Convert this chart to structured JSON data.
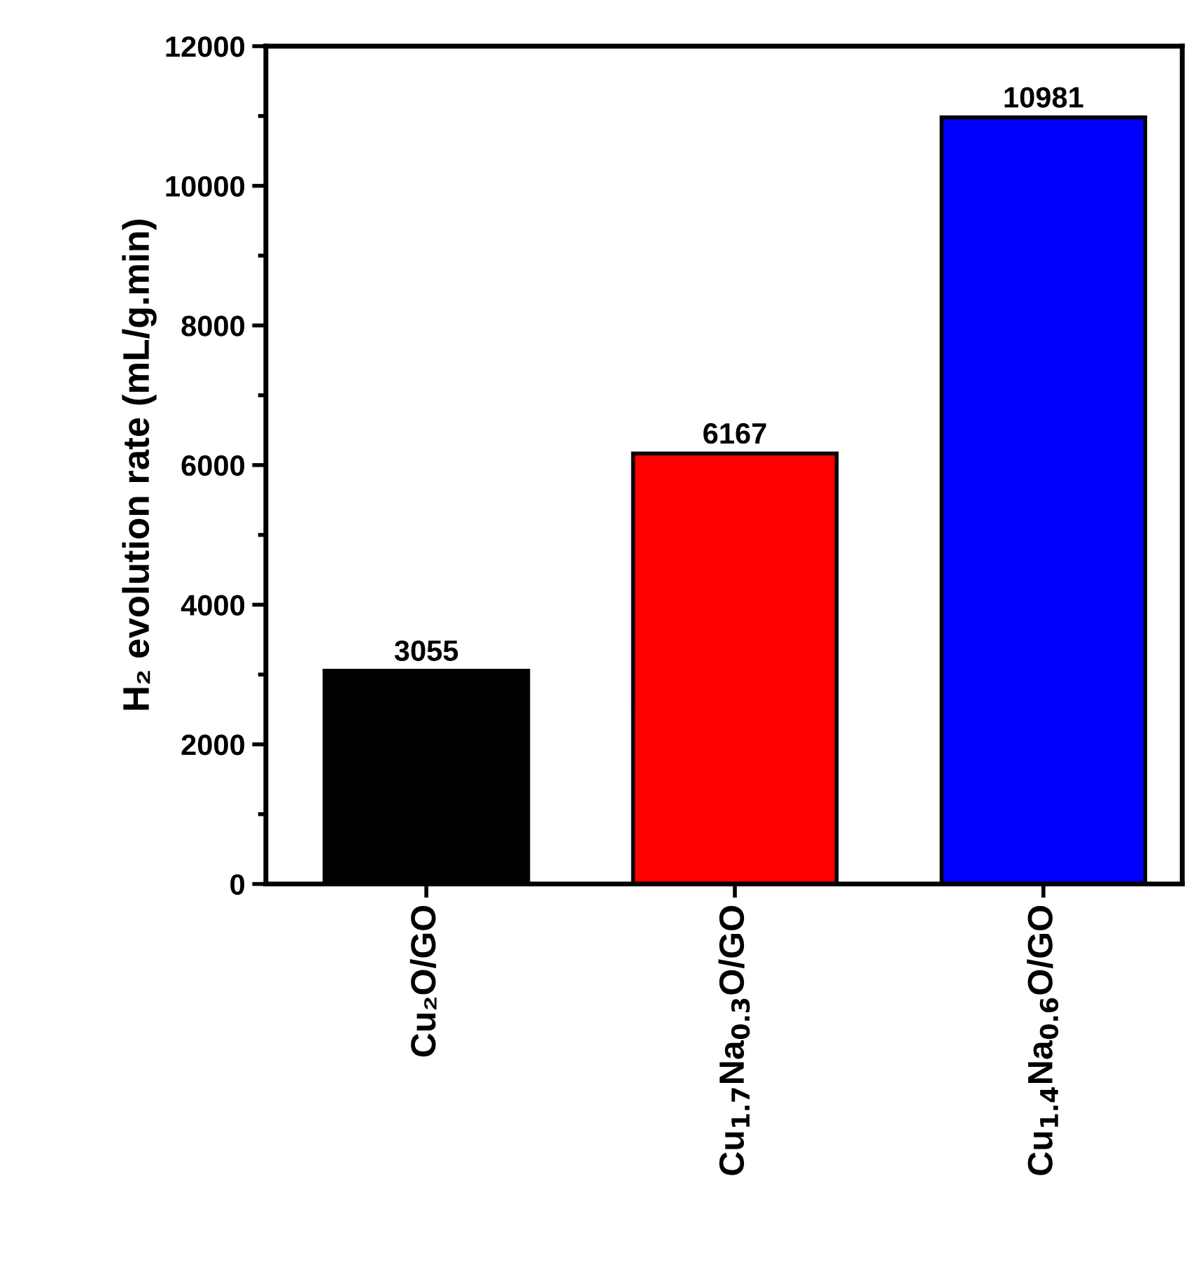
{
  "chart_data": {
    "type": "bar",
    "ylabel": "H₂ evolution rate (mL/g.min)",
    "categories": [
      "Cu₂O/GO",
      "Cu$_{1.7}$Na$_{0.3}$O/GO",
      "Cu$_{1.4}$Na$_{0.6}$O/GO"
    ],
    "values": [
      3055,
      6167,
      10981
    ],
    "colors": [
      "#000000",
      "#ff0000",
      "#0000ff"
    ],
    "ylim": [
      0,
      12000
    ],
    "yticks": [
      0,
      2000,
      4000,
      6000,
      8000,
      10000,
      12000
    ],
    "data_labels": true,
    "grid": false,
    "legend": false
  }
}
